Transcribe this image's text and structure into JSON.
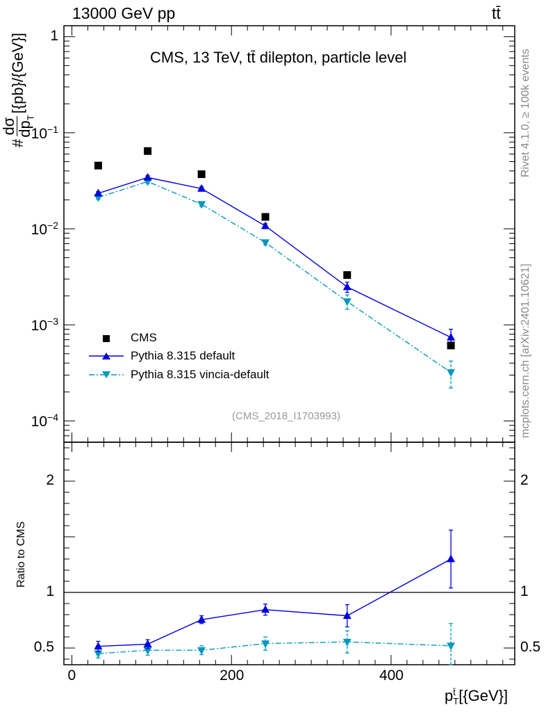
{
  "header": {
    "energy_label": "13000 GeV pp",
    "process_label": "tt̄"
  },
  "side_labels": {
    "rivet": "Rivet 4.1.0, ≥ 100k events",
    "mcplots": "mcplots.cern.ch [arXiv:2401.10621]"
  },
  "colors": {
    "cms": "#000000",
    "default": "#0000dd",
    "vincia": "#0099bb",
    "watermark": "#888888"
  },
  "chart_data": [
    {
      "type": "scatter",
      "panel": "main",
      "title": "CMS, 13 TeV, tt̄ dilepton, particle level",
      "analysis_id": "(CMS_2018_I1703993)",
      "ylabel_num": "dσ",
      "ylabel_frac_den": "dp",
      "ylabel_prefix": "#",
      "ylabel_units": "[{pb}/{GeV}]",
      "yscale": "log",
      "ylim": [
        6e-05,
        1.3
      ],
      "xlim": [
        -10,
        555
      ],
      "yticks": [
        {
          "value": 1,
          "mantissa": "1",
          "exp": ""
        },
        {
          "value": 0.1,
          "mantissa": "10",
          "exp": "−1"
        },
        {
          "value": 0.01,
          "mantissa": "10",
          "exp": "−2"
        },
        {
          "value": 0.001,
          "mantissa": "10",
          "exp": "−3"
        },
        {
          "value": 0.0001,
          "mantissa": "10",
          "exp": "−4"
        }
      ],
      "legend_position": "lower-left",
      "x": [
        33,
        95,
        162.5,
        242.5,
        345,
        475
      ],
      "series": [
        {
          "name": "CMS",
          "marker": "square",
          "line": "none",
          "values": [
            0.0455,
            0.0645,
            0.037,
            0.0133,
            0.0033,
            0.00061
          ],
          "err": [
            0,
            0,
            0,
            0,
            0,
            0
          ]
        },
        {
          "name": "Pythia 8.315 default",
          "marker": "triangle-up",
          "line": "solid",
          "values": [
            0.0234,
            0.0342,
            0.0262,
            0.0107,
            0.00248,
            0.00074
          ],
          "err": [
            0.001,
            0.0015,
            0.0012,
            0.0006,
            0.0003,
            0.00016
          ]
        },
        {
          "name": "Pythia 8.315 vincia-default",
          "marker": "triangle-down",
          "line": "dashdot",
          "values": [
            0.0212,
            0.031,
            0.018,
            0.0072,
            0.00175,
            0.00032
          ],
          "err": [
            0.001,
            0.0012,
            0.0009,
            0.0004,
            0.0003,
            0.0001
          ]
        }
      ]
    },
    {
      "type": "line",
      "panel": "ratio",
      "ylabel": "Ratio to CMS",
      "xlabel_main": "p",
      "xlabel_sup": "t̄",
      "xlabel_sub": "T",
      "xlabel_units": "[{GeV}]",
      "yscale": "linear",
      "ylim": [
        0.35,
        2.35
      ],
      "xlim": [
        -10,
        555
      ],
      "yticks": [
        0.5,
        1,
        2
      ],
      "xticks": [
        0,
        200,
        400
      ],
      "reference_line": 1,
      "x": [
        33,
        95,
        162.5,
        242.5,
        345,
        475
      ],
      "series": [
        {
          "name": "Pythia 8.315 default",
          "marker": "triangle-up",
          "line": "solid",
          "values": [
            0.515,
            0.535,
            0.755,
            0.845,
            0.79,
            1.3
          ],
          "err": [
            0.045,
            0.04,
            0.035,
            0.05,
            0.1,
            0.26
          ]
        },
        {
          "name": "Pythia 8.315 vincia-default",
          "marker": "triangle-down",
          "line": "dashdot",
          "values": [
            0.45,
            0.48,
            0.48,
            0.54,
            0.555,
            0.52
          ],
          "err": [
            0.04,
            0.045,
            0.04,
            0.06,
            0.1,
            0.2
          ]
        }
      ]
    }
  ]
}
